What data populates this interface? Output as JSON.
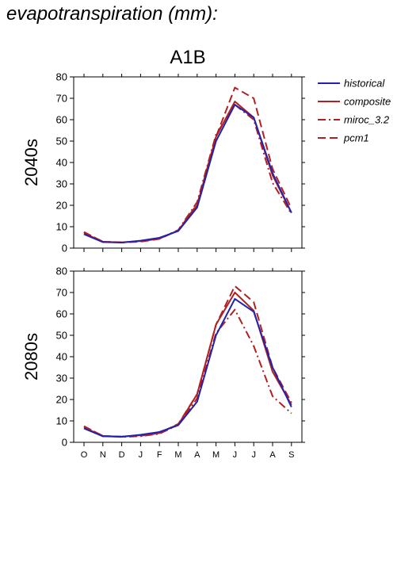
{
  "title": "evapotranspiration (mm):",
  "chart_data": {
    "type": "line",
    "scenario": "A1B",
    "x": [
      "O",
      "N",
      "D",
      "J",
      "F",
      "M",
      "A",
      "M",
      "J",
      "J",
      "A",
      "S"
    ],
    "ylim": [
      0,
      80
    ],
    "yticks": [
      0,
      10,
      20,
      30,
      40,
      50,
      60,
      70,
      80
    ],
    "legend_position": "right",
    "legend": [
      "historical",
      "composite",
      "miroc_3.2",
      "pcm1"
    ],
    "series_colors": {
      "historical": "#2222b0",
      "composite": "#b02020",
      "miroc_3.2": "#b02020",
      "pcm1": "#b02020"
    },
    "series_styles": {
      "historical": "solid",
      "composite": "solid",
      "miroc_3.2": "dashdot",
      "pcm1": "dashed"
    },
    "panels": [
      {
        "label": "2040s",
        "series": [
          {
            "name": "historical",
            "values": [
              6.5,
              2.8,
              2.6,
              3.5,
              4.8,
              8,
              19,
              50,
              67,
              61,
              35,
              16.5
            ]
          },
          {
            "name": "composite",
            "values": [
              7,
              2.9,
              2.7,
              3.3,
              4.6,
              8.2,
              20,
              52,
              68.5,
              61,
              34,
              16.5
            ]
          },
          {
            "name": "miroc_3.2",
            "values": [
              7.5,
              3,
              2.7,
              3.2,
              4.4,
              8.5,
              21.5,
              53,
              67,
              60,
              30.5,
              16
            ]
          },
          {
            "name": "pcm1",
            "values": [
              7.5,
              3,
              2.6,
              3,
              4.3,
              8.3,
              20.5,
              52,
              75,
              70,
              37,
              18.5
            ]
          }
        ]
      },
      {
        "label": "2080s",
        "series": [
          {
            "name": "historical",
            "values": [
              6.5,
              2.8,
              2.6,
              3.5,
              4.8,
              8,
              19,
              50,
              67,
              61,
              35,
              16.5
            ]
          },
          {
            "name": "composite",
            "values": [
              7,
              2.9,
              2.7,
              3.3,
              4.6,
              8.3,
              22.5,
              55,
              70,
              61.5,
              33,
              17.5
            ]
          },
          {
            "name": "miroc_3.2",
            "values": [
              7.5,
              3,
              2.5,
              2.9,
              4,
              8.2,
              20.5,
              51,
              62,
              45,
              21.5,
              13.5
            ]
          },
          {
            "name": "pcm1",
            "values": [
              7.5,
              3,
              2.6,
              3,
              4.3,
              8.6,
              22.5,
              55,
              73,
              65.5,
              35,
              18.5
            ]
          }
        ]
      }
    ]
  }
}
